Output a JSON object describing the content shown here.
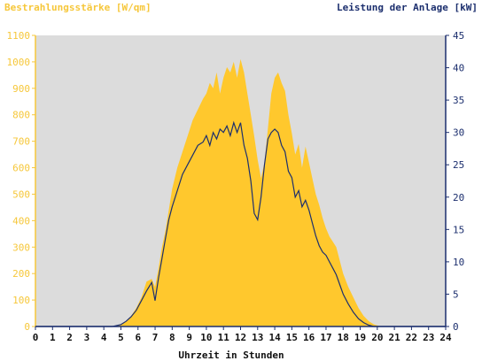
{
  "chart_data": {
    "type": "area",
    "left_axis_title": "Bestrahlungsstärke [W/qm]",
    "right_axis_title": "Leistung der Anlage [kW]",
    "xlabel": "Uhrzeit in Stunden",
    "xlim": [
      0,
      24
    ],
    "ylim_left": [
      0,
      1100
    ],
    "ylim_right": [
      0,
      45
    ],
    "x_ticks": [
      "0",
      "1",
      "2",
      "3",
      "4",
      "5",
      "6",
      "7",
      "8",
      "9",
      "10",
      "11",
      "12",
      "13",
      "14",
      "15",
      "16",
      "17",
      "18",
      "19",
      "20",
      "21",
      "22",
      "23",
      "24"
    ],
    "y_ticks_left": [
      "0",
      "100",
      "200",
      "300",
      "400",
      "500",
      "600",
      "700",
      "800",
      "900",
      "1000",
      "1100"
    ],
    "y_ticks_right": [
      "0",
      "5",
      "10",
      "15",
      "20",
      "25",
      "30",
      "35",
      "40",
      "45"
    ],
    "colors": {
      "irradiance_fill": "#ffc82d",
      "power_line": "#1c2f6e",
      "plot_background": "#dcdcdc",
      "left_axis": "#f6c73a",
      "right_axis": "#1c2f6e"
    },
    "series": [
      {
        "axis": "left",
        "kind": "area",
        "x": [
          0,
          4.5,
          5,
          5.3,
          5.6,
          5.9,
          6.2,
          6.5,
          6.8,
          7.0,
          7.2,
          7.4,
          7.6,
          7.8,
          8.0,
          8.3,
          8.6,
          8.9,
          9.2,
          9.5,
          9.8,
          10.0,
          10.2,
          10.4,
          10.6,
          10.8,
          11.0,
          11.2,
          11.4,
          11.6,
          11.8,
          12.0,
          12.2,
          12.4,
          12.6,
          12.8,
          13.0,
          13.2,
          13.4,
          13.6,
          13.8,
          14.0,
          14.2,
          14.4,
          14.6,
          14.8,
          15.0,
          15.2,
          15.4,
          15.6,
          15.8,
          16.0,
          16.2,
          16.4,
          16.6,
          16.8,
          17.0,
          17.2,
          17.4,
          17.6,
          17.8,
          18.0,
          18.3,
          18.6,
          18.9,
          19.2,
          19.5,
          19.8,
          20.1,
          20.4,
          20.7,
          21,
          24
        ],
        "y": [
          0,
          0,
          8,
          20,
          40,
          70,
          110,
          170,
          180,
          150,
          220,
          300,
          360,
          440,
          520,
          600,
          660,
          720,
          780,
          820,
          860,
          880,
          920,
          900,
          960,
          880,
          940,
          980,
          960,
          1000,
          940,
          1010,
          960,
          880,
          800,
          720,
          630,
          560,
          620,
          750,
          880,
          940,
          960,
          920,
          890,
          800,
          730,
          650,
          690,
          600,
          680,
          620,
          560,
          500,
          460,
          410,
          370,
          340,
          320,
          300,
          250,
          200,
          150,
          110,
          70,
          40,
          20,
          8,
          2,
          0,
          0,
          0,
          0
        ]
      },
      {
        "axis": "right",
        "kind": "line",
        "x": [
          0,
          4.5,
          5,
          5.3,
          5.6,
          5.9,
          6.2,
          6.5,
          6.8,
          7.0,
          7.2,
          7.4,
          7.6,
          7.8,
          8.0,
          8.3,
          8.6,
          8.9,
          9.2,
          9.5,
          9.8,
          10.0,
          10.2,
          10.4,
          10.6,
          10.8,
          11.0,
          11.2,
          11.4,
          11.6,
          11.8,
          12.0,
          12.2,
          12.4,
          12.6,
          12.8,
          13.0,
          13.2,
          13.4,
          13.6,
          13.8,
          14.0,
          14.2,
          14.4,
          14.6,
          14.8,
          15.0,
          15.2,
          15.4,
          15.6,
          15.8,
          16.0,
          16.2,
          16.4,
          16.6,
          16.8,
          17.0,
          17.2,
          17.4,
          17.6,
          17.8,
          18.0,
          18.3,
          18.6,
          18.9,
          19.2,
          19.5,
          19.8,
          20.1,
          20.4,
          20.7,
          21,
          24
        ],
        "y": [
          0,
          0,
          0.3,
          0.8,
          1.5,
          2.5,
          4,
          5.5,
          6.8,
          4,
          7.5,
          10.5,
          13.5,
          16.5,
          18.5,
          21,
          23.5,
          25,
          26.5,
          28,
          28.5,
          29.5,
          28,
          30,
          29,
          30.5,
          30,
          31,
          29.5,
          31.5,
          30,
          31.5,
          28,
          26,
          22.5,
          17.5,
          16.5,
          20,
          25,
          29,
          30,
          30.5,
          30,
          28,
          27,
          24,
          23,
          20,
          21,
          18.5,
          19.5,
          18,
          16,
          14,
          12.5,
          11.5,
          11,
          10,
          9,
          8,
          6.5,
          5,
          3.5,
          2.2,
          1.2,
          0.6,
          0.2,
          0,
          0,
          0,
          0,
          0,
          0
        ]
      }
    ]
  }
}
